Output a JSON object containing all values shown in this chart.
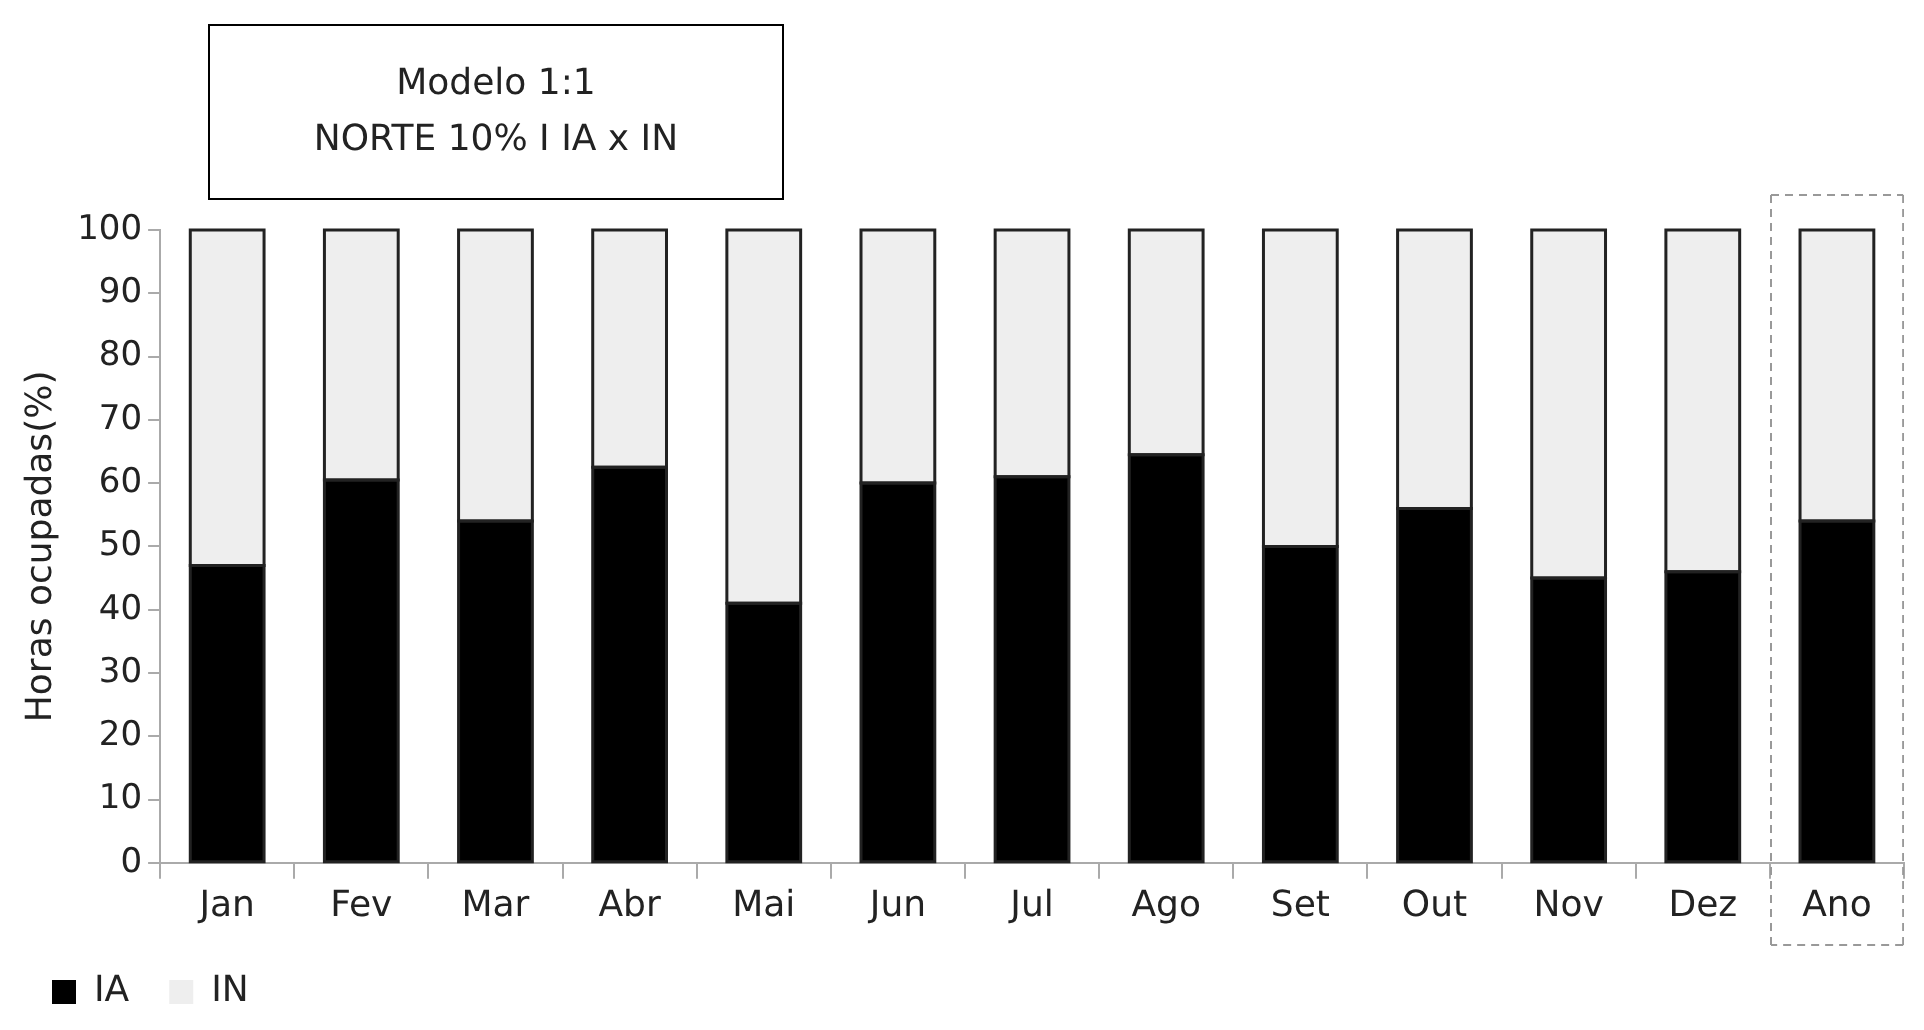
{
  "chart_data": {
    "type": "bar",
    "title": "Modelo 1:1",
    "subtitle": "NORTE 10% I IA x IN",
    "ylabel": "Horas ocupadas(%)",
    "categories": [
      "Jan",
      "Fev",
      "Mar",
      "Abr",
      "Mai",
      "Jun",
      "Jul",
      "Ago",
      "Set",
      "Out",
      "Nov",
      "Dez",
      "Ano"
    ],
    "stacked": true,
    "series": [
      {
        "name": "IA",
        "color": "#000000",
        "values": [
          47,
          60.5,
          54,
          62.5,
          41,
          60,
          61,
          64.5,
          50,
          56,
          45,
          46,
          54
        ]
      },
      {
        "name": "IN",
        "color": "#eeeeee",
        "values": [
          53,
          39.5,
          46,
          37.5,
          59,
          40,
          39,
          35.5,
          50,
          44,
          55,
          54,
          46
        ]
      }
    ],
    "ylim": [
      0,
      100
    ],
    "yticks": [
      0,
      10,
      20,
      30,
      40,
      50,
      60,
      70,
      80,
      90,
      100
    ],
    "grid": false,
    "legend": "bottom left"
  }
}
